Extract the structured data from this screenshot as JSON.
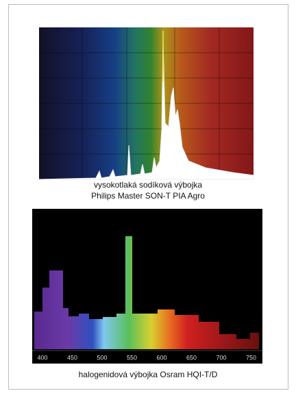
{
  "figures": [
    {
      "caption": [
        "vysokotlaká sodíková výbojka",
        "Philips Master SON-T PIA Agro"
      ]
    },
    {
      "axis_labels": [
        "400",
        "450",
        "500",
        "550",
        "600",
        "650",
        "700",
        "750"
      ],
      "caption": [
        "halogenidová výbojka Osram HQI-T/D"
      ]
    }
  ]
}
